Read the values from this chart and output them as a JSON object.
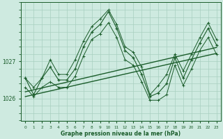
{
  "xlabel": "Graphe pression niveau de la mer (hPa)",
  "x_ticks": [
    0,
    1,
    2,
    3,
    4,
    5,
    6,
    7,
    8,
    9,
    10,
    11,
    12,
    13,
    14,
    15,
    16,
    17,
    18,
    19,
    20,
    21,
    22,
    23
  ],
  "ylim": [
    1025.4,
    1028.6
  ],
  "yticks": [
    1026,
    1027
  ],
  "background_color": "#ceeae0",
  "grid_color": "#a8cfc0",
  "line_color": "#1a5c2a",
  "main_series": [
    1026.55,
    1026.1,
    1026.55,
    1026.85,
    1026.5,
    1026.5,
    1026.8,
    1027.4,
    1027.8,
    1028.0,
    1028.35,
    1027.9,
    1027.3,
    1027.1,
    1026.65,
    1026.05,
    1026.15,
    1026.4,
    1027.1,
    1026.55,
    1027.05,
    1027.5,
    1027.9,
    1027.45
  ],
  "min_series": [
    1026.3,
    1026.05,
    1026.3,
    1026.45,
    1026.3,
    1026.3,
    1026.6,
    1027.15,
    1027.6,
    1027.75,
    1028.05,
    1027.65,
    1027.05,
    1026.9,
    1026.45,
    1025.95,
    1025.95,
    1026.1,
    1026.9,
    1026.35,
    1026.8,
    1027.3,
    1027.65,
    1027.2
  ],
  "max_series": [
    1026.55,
    1026.3,
    1026.55,
    1027.05,
    1026.65,
    1026.65,
    1027.05,
    1027.55,
    1027.95,
    1028.15,
    1028.4,
    1028.0,
    1027.4,
    1027.25,
    1026.85,
    1026.1,
    1026.35,
    1026.65,
    1027.2,
    1026.75,
    1027.2,
    1027.65,
    1028.05,
    1027.6
  ],
  "trend1": [
    1026.18,
    1027.38
  ],
  "trend2": [
    1026.05,
    1027.22
  ]
}
